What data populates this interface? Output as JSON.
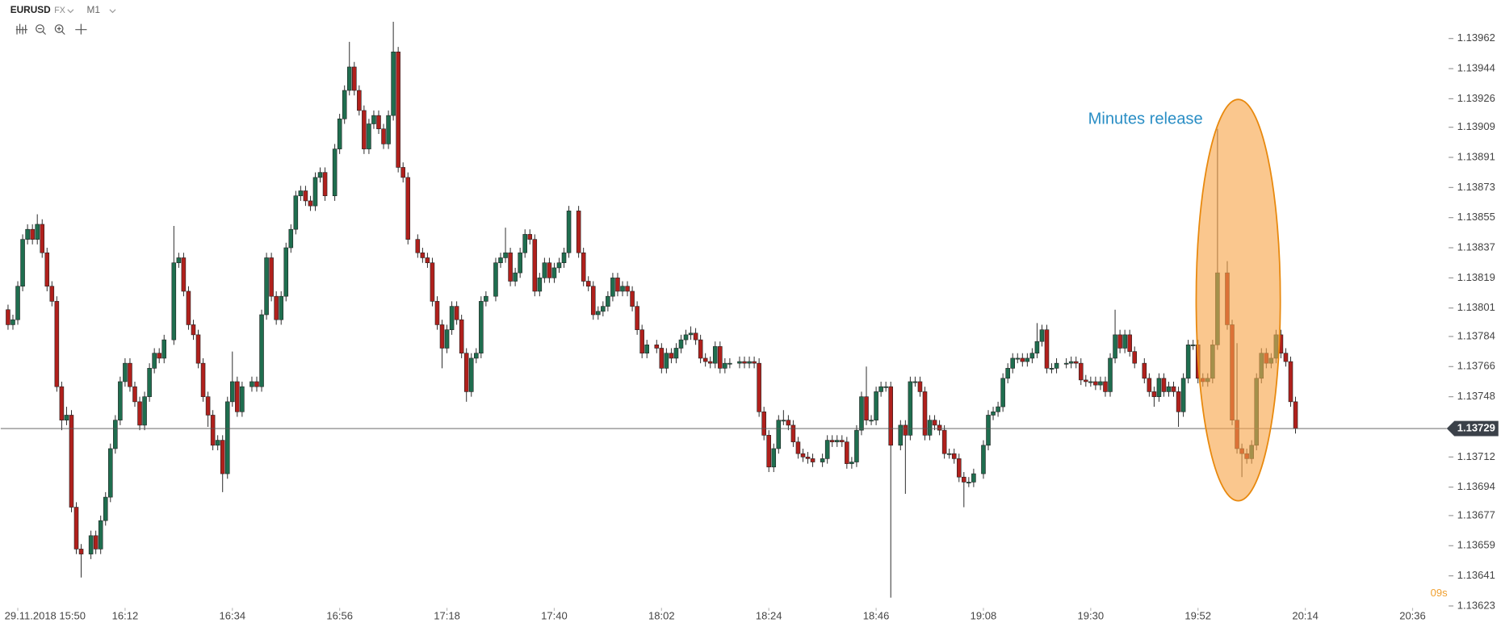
{
  "chart_data": {
    "type": "candlestick",
    "symbol": "EURUSD",
    "market": "FX",
    "timeframe": "M1",
    "countdown": "09s",
    "annotation": "Minutes release",
    "last_price": 1.13729,
    "up_color": "#1f6e4f",
    "down_color": "#b0201c",
    "highlight_color": "#f7a448",
    "x": [
      -2,
      -1,
      0,
      1,
      2,
      3,
      4,
      5,
      6,
      7,
      8,
      9,
      10,
      11,
      12,
      13,
      15,
      16,
      17,
      18,
      19,
      20,
      21,
      22,
      23,
      24,
      25,
      26,
      27,
      28,
      29,
      30,
      32,
      33,
      34,
      35,
      36,
      37,
      38,
      39,
      40,
      41,
      42,
      43,
      44,
      45,
      46,
      48,
      49,
      50,
      51,
      52,
      53,
      54,
      55,
      56,
      57,
      58,
      59,
      60,
      61,
      62,
      63,
      65,
      66,
      67,
      68,
      69,
      70,
      71,
      72,
      73,
      74,
      75,
      76,
      77,
      78,
      79,
      80,
      82,
      83,
      84,
      85,
      86,
      87,
      88,
      89,
      90,
      91,
      92,
      93,
      94,
      95,
      96,
      98,
      99,
      100,
      101,
      102,
      103,
      104,
      105,
      106,
      107,
      108,
      109,
      110,
      111,
      112,
      113,
      115,
      116,
      117,
      118,
      119,
      120,
      121,
      122,
      123,
      124,
      125,
      126,
      127,
      128,
      129,
      131,
      132,
      133,
      134,
      135,
      136,
      137,
      138,
      139,
      140,
      141,
      142,
      143,
      144,
      145,
      146,
      148,
      149,
      150,
      151,
      152,
      153,
      154,
      155,
      156,
      157,
      158,
      159,
      160,
      161,
      162,
      163,
      165,
      166,
      167,
      168,
      169,
      170,
      171,
      172,
      173,
      174,
      175,
      176,
      177,
      178,
      179,
      181,
      182,
      183,
      184,
      185,
      186,
      187,
      188,
      189,
      190,
      191,
      192,
      193,
      194,
      195,
      196,
      198,
      199,
      200,
      201,
      202,
      203,
      204,
      205,
      206,
      207,
      208,
      209,
      210,
      211,
      212,
      213,
      215,
      216,
      217,
      218,
      219,
      220,
      221,
      222,
      223,
      224,
      225,
      226,
      227,
      228,
      229,
      231,
      232,
      233,
      234,
      235,
      236,
      237,
      238,
      239,
      240,
      241,
      242,
      243,
      244,
      245,
      246,
      248,
      249,
      250,
      251,
      252,
      253,
      254,
      255,
      256,
      257,
      258,
      259,
      260,
      261,
      262
    ],
    "open": [
      1.138,
      1.13791,
      1.13794,
      1.13814,
      1.13842,
      1.13848,
      1.13842,
      1.13851,
      1.13834,
      1.13814,
      1.13805,
      1.13754,
      1.13734,
      1.13737,
      1.13682,
      1.13657,
      1.13654,
      1.13665,
      1.13657,
      1.13674,
      1.13688,
      1.13717,
      1.13734,
      1.13757,
      1.13768,
      1.13754,
      1.13745,
      1.13731,
      1.13748,
      1.13765,
      1.13774,
      1.13771,
      1.13782,
      1.13828,
      1.13831,
      1.13811,
      1.13791,
      1.13785,
      1.13768,
      1.13748,
      1.13737,
      1.13719,
      1.13722,
      1.13702,
      1.13745,
      1.13757,
      1.13739,
      1.13754,
      1.13757,
      1.13754,
      1.13797,
      1.13831,
      1.13808,
      1.13794,
      1.13808,
      1.13837,
      1.13848,
      1.13868,
      1.13871,
      1.13865,
      1.13862,
      1.13879,
      1.13882,
      1.13868,
      1.13896,
      1.13914,
      1.13931,
      1.13945,
      1.13931,
      1.13919,
      1.13896,
      1.13911,
      1.13916,
      1.13908,
      1.13899,
      1.13916,
      1.13954,
      1.13885,
      1.13879,
      1.13842,
      1.13834,
      1.13831,
      1.13828,
      1.13805,
      1.13791,
      1.13777,
      1.13788,
      1.13802,
      1.13794,
      1.13774,
      1.13751,
      1.13771,
      1.13774,
      1.13805,
      1.13808,
      1.13828,
      1.13831,
      1.13834,
      1.13817,
      1.13822,
      1.13834,
      1.13845,
      1.13842,
      1.13811,
      1.13819,
      1.13828,
      1.13819,
      1.13825,
      1.13828,
      1.13834,
      1.13859,
      1.13834,
      1.13817,
      1.13814,
      1.13797,
      1.13799,
      1.13802,
      1.13808,
      1.13819,
      1.13811,
      1.13814,
      1.13811,
      1.13802,
      1.13788,
      1.13774,
      1.13779,
      1.13777,
      1.13765,
      1.13774,
      1.13771,
      1.13777,
      1.13782,
      1.13785,
      1.13786,
      1.13782,
      1.13771,
      1.13769,
      1.13768,
      1.13778,
      1.13765,
      1.13768,
      1.13768,
      1.13769,
      1.13768,
      1.13769,
      1.13768,
      1.13739,
      1.13725,
      1.13706,
      1.13717,
      1.13734,
      1.13734,
      1.13731,
      1.13721,
      1.13714,
      1.13712,
      1.13711,
      1.13709,
      1.13711,
      1.13722,
      1.13721,
      1.13722,
      1.13721,
      1.13708,
      1.13709,
      1.13728,
      1.13748,
      1.13734,
      1.13734,
      1.13751,
      1.13754,
      1.13754,
      1.13719,
      1.13731,
      1.13725,
      1.13757,
      1.13757,
      1.13751,
      1.13725,
      1.13734,
      1.13731,
      1.13728,
      1.13714,
      1.13714,
      1.13711,
      1.137,
      1.13697,
      1.13697,
      1.13702,
      1.13719,
      1.13737,
      1.13739,
      1.13742,
      1.13759,
      1.13765,
      1.13771,
      1.13771,
      1.13769,
      1.13771,
      1.13774,
      1.13781,
      1.13788,
      1.13765,
      1.13765,
      1.13768,
      1.13768,
      1.13769,
      1.13768,
      1.13758,
      1.13757,
      1.13757,
      1.13755,
      1.13757,
      1.13751,
      1.13771,
      1.13785,
      1.13777,
      1.13785,
      1.13775,
      1.13768,
      1.13759,
      1.13751,
      1.13748,
      1.13759,
      1.13751,
      1.13754,
      1.13751,
      1.13739,
      1.13759,
      1.13779,
      1.13779,
      1.13759,
      1.13757,
      1.13759,
      1.13779,
      1.13822,
      1.13791,
      1.13734,
      1.13717,
      1.13714,
      1.13711,
      1.13719,
      1.13759,
      1.13774,
      1.13768,
      1.13771,
      1.13785,
      1.13774,
      1.13769,
      1.13745
    ],
    "high": [
      1.13803,
      1.13797,
      1.13817,
      1.13845,
      1.13851,
      1.13851,
      1.13857,
      1.13854,
      1.13837,
      1.13817,
      1.13808,
      1.13757,
      1.13742,
      1.1374,
      1.13685,
      1.1366,
      1.13668,
      1.13668,
      1.13677,
      1.13691,
      1.1372,
      1.13737,
      1.1376,
      1.13771,
      1.13771,
      1.13757,
      1.13748,
      1.13751,
      1.13768,
      1.13777,
      1.13777,
      1.13785,
      1.1385,
      1.13834,
      1.13834,
      1.13814,
      1.13794,
      1.13788,
      1.13771,
      1.13751,
      1.1374,
      1.13725,
      1.13725,
      1.13748,
      1.13775,
      1.1376,
      1.13757,
      1.1376,
      1.1376,
      1.138,
      1.13834,
      1.13834,
      1.13811,
      1.13811,
      1.1384,
      1.13851,
      1.13871,
      1.13874,
      1.13874,
      1.13868,
      1.13882,
      1.13885,
      1.13885,
      1.13899,
      1.13917,
      1.13934,
      1.1396,
      1.13948,
      1.13934,
      1.13922,
      1.13914,
      1.13919,
      1.13919,
      1.13911,
      1.13919,
      1.13972,
      1.13957,
      1.13888,
      1.13882,
      1.13845,
      1.13837,
      1.13834,
      1.13831,
      1.13808,
      1.13794,
      1.13791,
      1.13805,
      1.13805,
      1.13797,
      1.13777,
      1.13774,
      1.13777,
      1.13808,
      1.13811,
      1.13831,
      1.13834,
      1.13849,
      1.13837,
      1.13825,
      1.13837,
      1.13848,
      1.13848,
      1.13845,
      1.13822,
      1.13831,
      1.13831,
      1.13828,
      1.13831,
      1.13837,
      1.13862,
      1.13862,
      1.13837,
      1.1382,
      1.13817,
      1.13802,
      1.13805,
      1.13811,
      1.13822,
      1.13822,
      1.13817,
      1.13817,
      1.13814,
      1.13805,
      1.13791,
      1.13782,
      1.13782,
      1.1378,
      1.13777,
      1.13777,
      1.1378,
      1.13785,
      1.13788,
      1.1379,
      1.13789,
      1.13785,
      1.13774,
      1.13772,
      1.13781,
      1.13781,
      1.13771,
      1.13771,
      1.13772,
      1.13772,
      1.13772,
      1.13772,
      1.13771,
      1.13742,
      1.13728,
      1.1372,
      1.13737,
      1.1374,
      1.13737,
      1.13734,
      1.13724,
      1.13717,
      1.13715,
      1.13714,
      1.13714,
      1.13725,
      1.13725,
      1.13725,
      1.13725,
      1.13724,
      1.13712,
      1.13731,
      1.13751,
      1.13766,
      1.13737,
      1.13754,
      1.13757,
      1.13757,
      1.13757,
      1.13734,
      1.13734,
      1.1376,
      1.1376,
      1.1376,
      1.13754,
      1.13737,
      1.13737,
      1.13734,
      1.13731,
      1.13717,
      1.13717,
      1.13714,
      1.13703,
      1.137,
      1.13705,
      1.13722,
      1.1374,
      1.13742,
      1.13745,
      1.13762,
      1.13768,
      1.13774,
      1.13774,
      1.13774,
      1.13774,
      1.13777,
      1.13792,
      1.13791,
      1.13791,
      1.13768,
      1.13771,
      1.13771,
      1.13772,
      1.13772,
      1.13771,
      1.13761,
      1.1376,
      1.1376,
      1.1376,
      1.1376,
      1.13774,
      1.138,
      1.13788,
      1.13788,
      1.13788,
      1.13778,
      1.13771,
      1.13762,
      1.13754,
      1.13762,
      1.13762,
      1.13757,
      1.13757,
      1.13754,
      1.13762,
      1.13782,
      1.13782,
      1.13782,
      1.13762,
      1.13762,
      1.13782,
      1.13908,
      1.13829,
      1.13794,
      1.1378,
      1.1372,
      1.13717,
      1.13722,
      1.13762,
      1.13777,
      1.13777,
      1.13774,
      1.13788,
      1.13788,
      1.13777,
      1.13772,
      1.13748
    ],
    "low": [
      1.13788,
      1.13788,
      1.13791,
      1.13811,
      1.13839,
      1.13839,
      1.13839,
      1.13831,
      1.13811,
      1.13802,
      1.13751,
      1.13728,
      1.13731,
      1.13679,
      1.13654,
      1.1364,
      1.13651,
      1.13654,
      1.13654,
      1.13671,
      1.13685,
      1.13714,
      1.13731,
      1.13754,
      1.13751,
      1.13742,
      1.13728,
      1.13728,
      1.13745,
      1.13762,
      1.13768,
      1.13768,
      1.13779,
      1.13825,
      1.13808,
      1.13788,
      1.13782,
      1.13765,
      1.13745,
      1.1373,
      1.13716,
      1.13716,
      1.13691,
      1.13699,
      1.13742,
      1.13736,
      1.13736,
      1.13751,
      1.13751,
      1.13751,
      1.13794,
      1.13805,
      1.13791,
      1.13791,
      1.13805,
      1.13834,
      1.13845,
      1.13865,
      1.13862,
      1.13859,
      1.13859,
      1.13876,
      1.13865,
      1.13865,
      1.13893,
      1.13911,
      1.13928,
      1.13928,
      1.13916,
      1.13893,
      1.13893,
      1.13908,
      1.13905,
      1.13896,
      1.13896,
      1.13913,
      1.13882,
      1.13876,
      1.13839,
      1.13831,
      1.13828,
      1.13825,
      1.13802,
      1.13788,
      1.13765,
      1.13774,
      1.13785,
      1.13791,
      1.13771,
      1.13745,
      1.13748,
      1.13768,
      1.13771,
      1.13802,
      1.13805,
      1.13825,
      1.13828,
      1.13814,
      1.13814,
      1.13819,
      1.13831,
      1.13839,
      1.13808,
      1.13808,
      1.13816,
      1.13816,
      1.13816,
      1.13822,
      1.13825,
      1.13831,
      1.13831,
      1.13814,
      1.13811,
      1.13794,
      1.13794,
      1.13796,
      1.13799,
      1.13805,
      1.13808,
      1.13808,
      1.13808,
      1.13799,
      1.13785,
      1.13771,
      1.13771,
      1.13774,
      1.13762,
      1.13762,
      1.13768,
      1.13768,
      1.13774,
      1.13779,
      1.13782,
      1.13779,
      1.13768,
      1.13766,
      1.13765,
      1.13765,
      1.13762,
      1.13762,
      1.13765,
      1.13765,
      1.13765,
      1.13765,
      1.13765,
      1.13736,
      1.13722,
      1.13703,
      1.13703,
      1.13714,
      1.13731,
      1.13728,
      1.13718,
      1.13711,
      1.13709,
      1.13708,
      1.13706,
      1.13706,
      1.13708,
      1.13718,
      1.13718,
      1.13718,
      1.13705,
      1.13705,
      1.13706,
      1.13725,
      1.13731,
      1.13731,
      1.13731,
      1.13748,
      1.13751,
      1.13628,
      1.13716,
      1.1369,
      1.13722,
      1.13754,
      1.13748,
      1.13722,
      1.13722,
      1.13728,
      1.13725,
      1.13711,
      1.13711,
      1.13708,
      1.13697,
      1.13682,
      1.13694,
      1.13694,
      1.13699,
      1.13716,
      1.13734,
      1.13736,
      1.13739,
      1.13756,
      1.13762,
      1.13768,
      1.13766,
      1.13766,
      1.13768,
      1.13771,
      1.13778,
      1.13762,
      1.13762,
      1.13762,
      1.13765,
      1.13765,
      1.13765,
      1.13755,
      1.13754,
      1.13754,
      1.13752,
      1.13752,
      1.13748,
      1.13748,
      1.13768,
      1.13774,
      1.13774,
      1.13772,
      1.13765,
      1.13756,
      1.13748,
      1.13742,
      1.13745,
      1.13748,
      1.13748,
      1.13748,
      1.1373,
      1.13736,
      1.13756,
      1.13776,
      1.13756,
      1.13754,
      1.13754,
      1.13756,
      1.13776,
      1.13788,
      1.13731,
      1.13714,
      1.137,
      1.13708,
      1.13708,
      1.13716,
      1.13756,
      1.13765,
      1.13765,
      1.13768,
      1.13771,
      1.13766,
      1.13742,
      1.13726
    ],
    "close": [
      1.13791,
      1.13794,
      1.13814,
      1.13842,
      1.13848,
      1.13842,
      1.13851,
      1.13834,
      1.13814,
      1.13805,
      1.13754,
      1.13734,
      1.13737,
      1.13682,
      1.13657,
      1.13654,
      1.13665,
      1.13657,
      1.13674,
      1.13688,
      1.13717,
      1.13734,
      1.13757,
      1.13768,
      1.13754,
      1.13745,
      1.13731,
      1.13748,
      1.13765,
      1.13774,
      1.13771,
      1.13782,
      1.13828,
      1.13831,
      1.13811,
      1.13791,
      1.13785,
      1.13768,
      1.13748,
      1.13737,
      1.13719,
      1.13722,
      1.13702,
      1.13745,
      1.13757,
      1.13739,
      1.13754,
      1.13757,
      1.13754,
      1.13797,
      1.13831,
      1.13808,
      1.13794,
      1.13808,
      1.13837,
      1.13848,
      1.13868,
      1.13871,
      1.13865,
      1.13862,
      1.13879,
      1.13882,
      1.13868,
      1.13896,
      1.13914,
      1.13931,
      1.13945,
      1.13931,
      1.13919,
      1.13896,
      1.13911,
      1.13916,
      1.13908,
      1.13899,
      1.13916,
      1.13954,
      1.13885,
      1.13879,
      1.13842,
      1.13834,
      1.13831,
      1.13828,
      1.13805,
      1.13791,
      1.13777,
      1.13788,
      1.13802,
      1.13794,
      1.13774,
      1.13751,
      1.13771,
      1.13774,
      1.13805,
      1.13808,
      1.13828,
      1.13831,
      1.13834,
      1.13817,
      1.13822,
      1.13834,
      1.13845,
      1.13842,
      1.13811,
      1.13819,
      1.13828,
      1.13819,
      1.13825,
      1.13828,
      1.13834,
      1.13859,
      1.13834,
      1.13817,
      1.13814,
      1.13797,
      1.13799,
      1.13802,
      1.13808,
      1.13819,
      1.13811,
      1.13814,
      1.13811,
      1.13802,
      1.13788,
      1.13774,
      1.13779,
      1.13777,
      1.13765,
      1.13774,
      1.13771,
      1.13777,
      1.13782,
      1.13785,
      1.13786,
      1.13782,
      1.13771,
      1.13769,
      1.13768,
      1.13778,
      1.13765,
      1.13768,
      1.13768,
      1.13769,
      1.13768,
      1.13769,
      1.13768,
      1.13739,
      1.13725,
      1.13706,
      1.13717,
      1.13734,
      1.13734,
      1.13731,
      1.13721,
      1.13714,
      1.13712,
      1.13711,
      1.13709,
      1.13711,
      1.13722,
      1.13721,
      1.13722,
      1.13721,
      1.13708,
      1.13709,
      1.13728,
      1.13748,
      1.13734,
      1.13734,
      1.13751,
      1.13754,
      1.13754,
      1.13719,
      1.13731,
      1.13725,
      1.13757,
      1.13757,
      1.13751,
      1.13725,
      1.13734,
      1.13731,
      1.13728,
      1.13714,
      1.13714,
      1.13711,
      1.137,
      1.13697,
      1.13697,
      1.13702,
      1.13719,
      1.13737,
      1.13739,
      1.13742,
      1.13759,
      1.13765,
      1.13771,
      1.13771,
      1.13769,
      1.13771,
      1.13774,
      1.13781,
      1.13788,
      1.13765,
      1.13765,
      1.13768,
      1.13768,
      1.13769,
      1.13768,
      1.13758,
      1.13757,
      1.13757,
      1.13755,
      1.13757,
      1.13751,
      1.13771,
      1.13785,
      1.13777,
      1.13785,
      1.13775,
      1.13768,
      1.13759,
      1.13751,
      1.13748,
      1.13759,
      1.13751,
      1.13754,
      1.13751,
      1.13739,
      1.13759,
      1.13779,
      1.13779,
      1.13759,
      1.13757,
      1.13759,
      1.13779,
      1.13822,
      1.13791,
      1.13734,
      1.13717,
      1.13714,
      1.13711,
      1.13719,
      1.13759,
      1.13774,
      1.13768,
      1.13771,
      1.13785,
      1.13774,
      1.13769,
      1.13745,
      1.13729
    ],
    "xlim": [
      -3.5,
      293
    ],
    "xticks": [
      {
        "value": 0,
        "label": "29.11.2018 15:50"
      },
      {
        "value": 22,
        "label": "16:12"
      },
      {
        "value": 44,
        "label": "16:34"
      },
      {
        "value": 66,
        "label": "16:56"
      },
      {
        "value": 88,
        "label": "17:18"
      },
      {
        "value": 110,
        "label": "17:40"
      },
      {
        "value": 132,
        "label": "18:02"
      },
      {
        "value": 154,
        "label": "18:24"
      },
      {
        "value": 176,
        "label": "18:46"
      },
      {
        "value": 198,
        "label": "19:08"
      },
      {
        "value": 220,
        "label": "19:30"
      },
      {
        "value": 242,
        "label": "19:52"
      },
      {
        "value": 264,
        "label": "20:14"
      },
      {
        "value": 286,
        "label": "20:36"
      }
    ],
    "ylim": [
      1.13623,
      1.13985
    ],
    "yticks": [
      1.13623,
      1.13641,
      1.13659,
      1.13677,
      1.13694,
      1.13712,
      1.13748,
      1.13766,
      1.13784,
      1.13801,
      1.13819,
      1.13837,
      1.13855,
      1.13873,
      1.13891,
      1.13909,
      1.13926,
      1.13944,
      1.13962
    ]
  }
}
